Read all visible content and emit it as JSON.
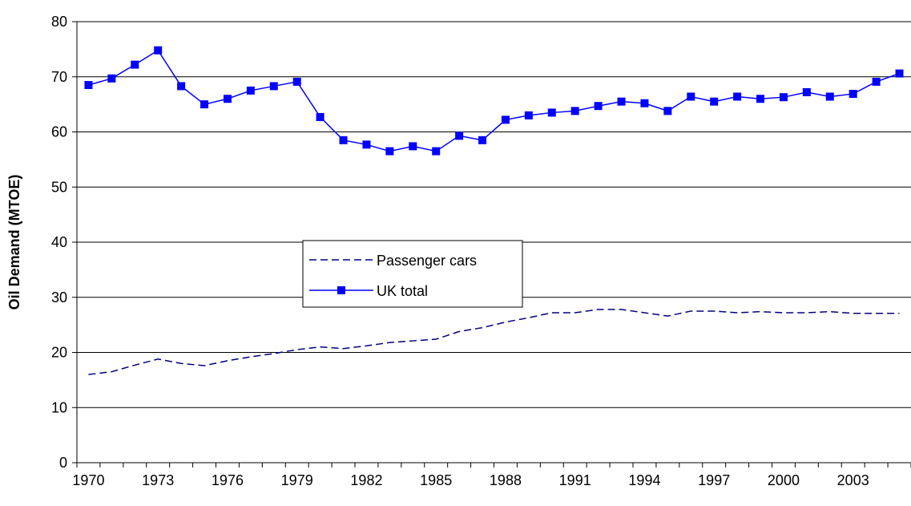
{
  "chart_data": {
    "type": "line",
    "y_label": "Oil Demand (MTOE)",
    "x": [
      1970,
      1971,
      1972,
      1973,
      1974,
      1975,
      1976,
      1977,
      1978,
      1979,
      1980,
      1981,
      1982,
      1983,
      1984,
      1985,
      1986,
      1987,
      1988,
      1989,
      1990,
      1991,
      1992,
      1993,
      1994,
      1995,
      1996,
      1997,
      1998,
      1999,
      2000,
      2001,
      2002,
      2003,
      2004,
      2005
    ],
    "xlim": [
      1969.5,
      2005.5
    ],
    "xticks": [
      1970,
      1973,
      1976,
      1979,
      1982,
      1985,
      1988,
      1991,
      1994,
      1997,
      2000,
      2003
    ],
    "ylim": [
      0,
      80
    ],
    "yticks": [
      0,
      10,
      20,
      30,
      40,
      50,
      60,
      70,
      80
    ],
    "grid": true,
    "legend": "center-left",
    "series": [
      {
        "name": "Passenger cars",
        "color": "#000080",
        "style": "dashed",
        "marker": "none",
        "values": [
          16,
          16.5,
          17.7,
          18.8,
          18,
          17.6,
          18.5,
          19.2,
          19.8,
          20.5,
          21,
          20.7,
          21.2,
          21.8,
          22.1,
          22.4,
          23.8,
          24.5,
          25.5,
          26.3,
          27.2,
          27.2,
          27.8,
          27.8,
          27.2,
          26.6,
          27.5,
          27.5,
          27.2,
          27.4,
          27.2,
          27.2,
          27.4,
          27.1,
          27.1,
          27.1
        ]
      },
      {
        "name": "UK total",
        "color": "#0000ff",
        "style": "solid",
        "marker": "square",
        "values": [
          68.5,
          69.7,
          72.2,
          74.8,
          68.3,
          65,
          66,
          67.5,
          68.3,
          69.1,
          62.7,
          58.5,
          57.7,
          56.5,
          57.4,
          56.5,
          59.3,
          58.5,
          62.2,
          63,
          63.5,
          63.8,
          64.7,
          65.5,
          65.2,
          63.8,
          66.4,
          65.5,
          66.4,
          66,
          66.3,
          67.2,
          66.4,
          66.9,
          69.1,
          70.6
        ]
      }
    ]
  }
}
